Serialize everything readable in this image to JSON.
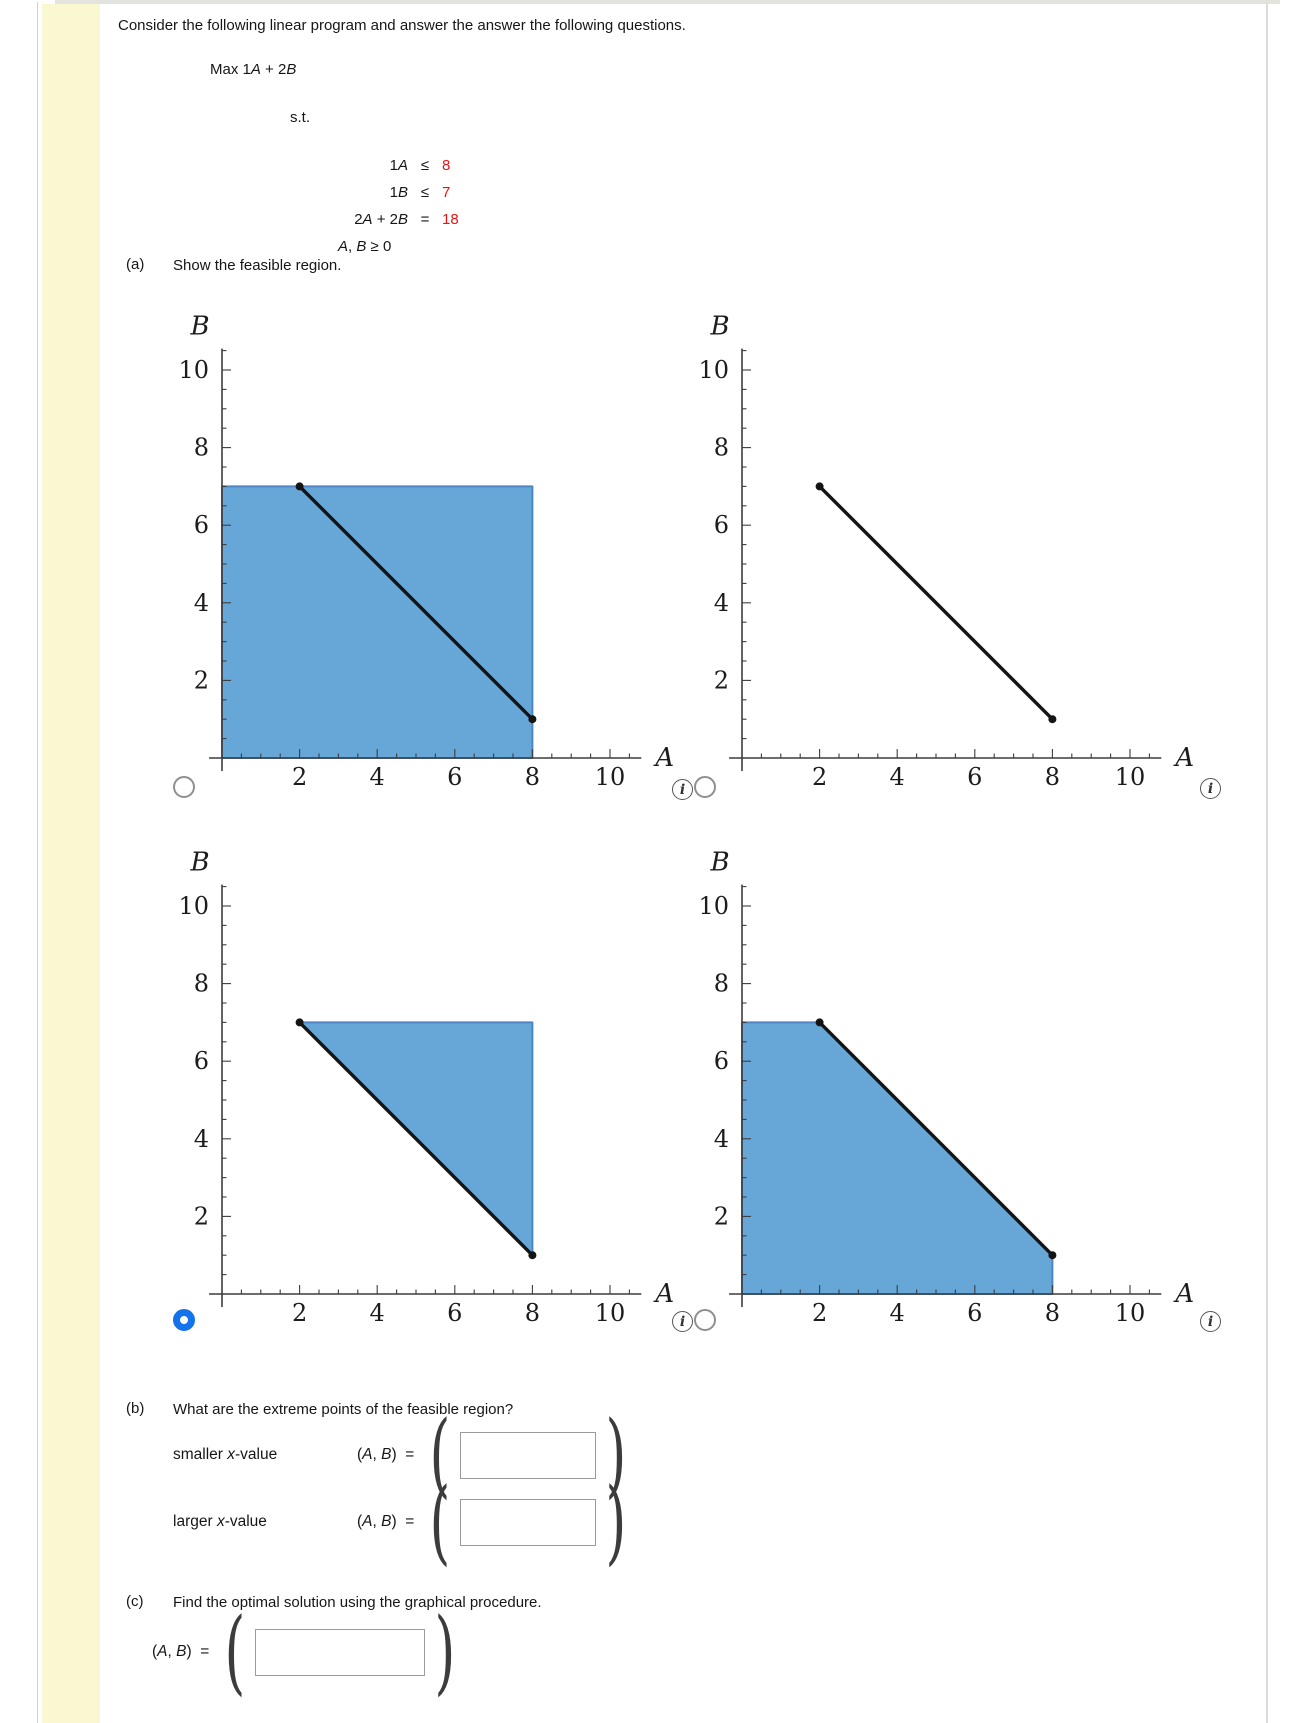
{
  "intro": "Consider the following linear program and answer the answer the following questions.",
  "objective": [
    {
      "t": "Max 1"
    },
    {
      "i": "A"
    },
    {
      "t": " + 2"
    },
    {
      "i": "B"
    }
  ],
  "st_label": "s.t.",
  "constraints": [
    {
      "lhs": [
        {
          "t": "1"
        },
        {
          "i": "A"
        }
      ],
      "op": "≤",
      "rhs": "8"
    },
    {
      "lhs": [
        {
          "t": "1"
        },
        {
          "i": "B"
        }
      ],
      "op": "≤",
      "rhs": "7"
    },
    {
      "lhs": [
        {
          "t": "2"
        },
        {
          "i": "A"
        },
        {
          "t": " + 2"
        },
        {
          "i": "B"
        }
      ],
      "op": "=",
      "rhs": "18"
    }
  ],
  "nonneg": [
    {
      "i": "A"
    },
    {
      "t": ", "
    },
    {
      "i": "B"
    },
    {
      "t": " ≥ 0"
    }
  ],
  "part_a": {
    "label": "(a)",
    "text": "Show the feasible region."
  },
  "part_b": {
    "label": "(b)",
    "text": "What are the extreme points of the feasible region?",
    "rows": [
      {
        "label": [
          {
            "t": "smaller "
          },
          {
            "i": "x"
          },
          {
            "t": "-value"
          }
        ],
        "prefix": [
          {
            "t": "("
          },
          {
            "i": "A"
          },
          {
            "t": ", "
          },
          {
            "i": "B"
          },
          {
            "t": ")  ="
          }
        ],
        "value": "",
        "open_paren": "(",
        "close_paren": ")"
      },
      {
        "label": [
          {
            "t": "larger "
          },
          {
            "i": "x"
          },
          {
            "t": "-value"
          }
        ],
        "prefix": [
          {
            "t": "("
          },
          {
            "i": "A"
          },
          {
            "t": ", "
          },
          {
            "i": "B"
          },
          {
            "t": ")  ="
          }
        ],
        "value": "",
        "open_paren": "(",
        "close_paren": ")"
      }
    ]
  },
  "part_c": {
    "label": "(c)",
    "text": "Find the optimal solution using the graphical procedure.",
    "prefix": [
      {
        "t": "("
      },
      {
        "i": "A"
      },
      {
        "t": ", "
      },
      {
        "i": "B"
      },
      {
        "t": ")  ="
      }
    ],
    "value": "",
    "open_paren": "(",
    "close_paren": ")"
  },
  "info_icon_glyph": "i",
  "chart_data": [
    {
      "id": "option-1",
      "type": "area",
      "position": "top-left",
      "selected": false,
      "xlabel": "A",
      "ylabel": "B",
      "xlim": [
        0,
        10.8
      ],
      "ylim": [
        0,
        10.8
      ],
      "xticks": [
        2,
        4,
        6,
        8,
        10
      ],
      "yticks": [
        2,
        4,
        6,
        8,
        10
      ],
      "grid": false,
      "region": [
        [
          0,
          0
        ],
        [
          0,
          7
        ],
        [
          8,
          7
        ],
        [
          8,
          0
        ]
      ],
      "segment": [
        [
          2,
          7
        ],
        [
          8,
          1
        ]
      ],
      "points": [
        [
          2,
          7
        ],
        [
          8,
          1
        ]
      ],
      "description": "rectangle 0<=A<=8, 0<=B<=7 shaded with line 2A+2B=18"
    },
    {
      "id": "option-2",
      "type": "line",
      "position": "top-right",
      "selected": false,
      "xlabel": "A",
      "ylabel": "B",
      "xlim": [
        0,
        10.8
      ],
      "ylim": [
        0,
        10.8
      ],
      "xticks": [
        2,
        4,
        6,
        8,
        10
      ],
      "yticks": [
        2,
        4,
        6,
        8,
        10
      ],
      "grid": false,
      "region": null,
      "segment": [
        [
          2,
          7
        ],
        [
          8,
          1
        ]
      ],
      "points": [
        [
          2,
          7
        ],
        [
          8,
          1
        ]
      ],
      "description": "line segment 2A+2B=18 only, no shading"
    },
    {
      "id": "option-3",
      "type": "area",
      "position": "bottom-left",
      "selected": true,
      "xlabel": "A",
      "ylabel": "B",
      "xlim": [
        0,
        10.8
      ],
      "ylim": [
        0,
        10.8
      ],
      "xticks": [
        2,
        4,
        6,
        8,
        10
      ],
      "yticks": [
        2,
        4,
        6,
        8,
        10
      ],
      "grid": false,
      "region": [
        [
          2,
          7
        ],
        [
          8,
          7
        ],
        [
          8,
          1
        ]
      ],
      "segment": [
        [
          2,
          7
        ],
        [
          8,
          1
        ]
      ],
      "points": [
        [
          2,
          7
        ],
        [
          8,
          1
        ]
      ],
      "description": "triangle above line bounded by B=7 and A=8 shaded"
    },
    {
      "id": "option-4",
      "type": "area",
      "position": "bottom-right",
      "selected": false,
      "xlabel": "A",
      "ylabel": "B",
      "xlim": [
        0,
        10.8
      ],
      "ylim": [
        0,
        10.8
      ],
      "xticks": [
        2,
        4,
        6,
        8,
        10
      ],
      "yticks": [
        2,
        4,
        6,
        8,
        10
      ],
      "grid": false,
      "region": [
        [
          0,
          0
        ],
        [
          0,
          7
        ],
        [
          2,
          7
        ],
        [
          8,
          1
        ],
        [
          8,
          0
        ]
      ],
      "segment": [
        [
          2,
          7
        ],
        [
          8,
          1
        ]
      ],
      "points": [
        [
          2,
          7
        ],
        [
          8,
          1
        ]
      ],
      "description": "pentagon below line bounded by axes, B=7, A=8 shaded"
    }
  ],
  "colors": {
    "region_fill": "#67a7d8",
    "region_edge": "#4f86c2",
    "segment": "#141414",
    "axis": "#3d3d3d",
    "radio_selected": "#1273eb",
    "constraint_value_red": "#ee1111",
    "yellow_strip": "#faf8d0"
  }
}
